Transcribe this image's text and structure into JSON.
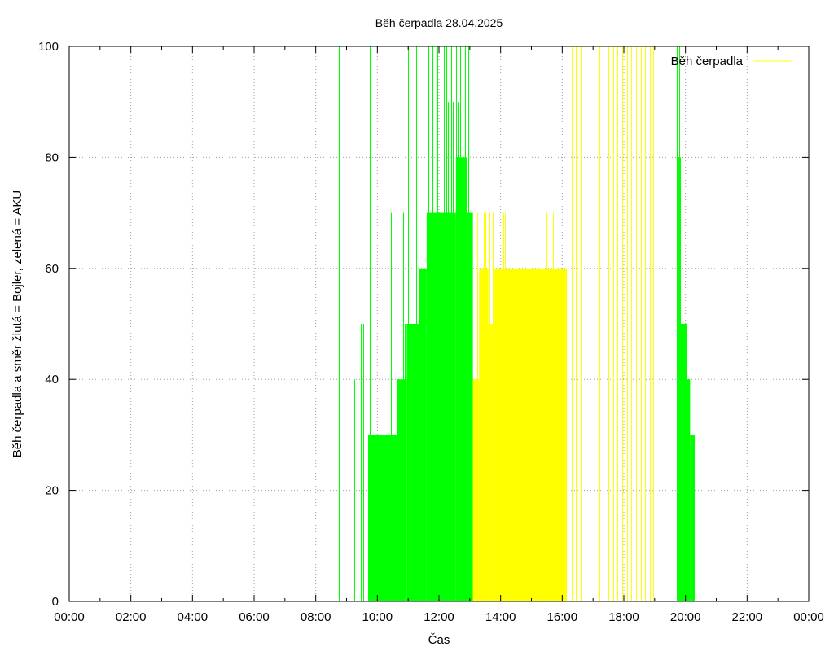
{
  "chart_data": {
    "type": "impulse",
    "title": "Běh čerpadla 28.04.2025",
    "xlabel": "Čas",
    "ylabel": "Běh čerpadla a směr žlutá = Bojler, zelená = AKU",
    "xlim": [
      0,
      24
    ],
    "ylim": [
      0,
      100
    ],
    "xticks": [
      "00:00",
      "02:00",
      "04:00",
      "06:00",
      "08:00",
      "10:00",
      "12:00",
      "14:00",
      "16:00",
      "18:00",
      "20:00",
      "22:00",
      "00:00"
    ],
    "yticks": [
      "0",
      "20",
      "40",
      "60",
      "80",
      "100"
    ],
    "grid": true,
    "legend": {
      "position": "top-right",
      "entries": [
        {
          "name": "Běh čerpadla",
          "color": "#ffff00"
        }
      ]
    },
    "colors": {
      "aku": "#00ff00",
      "bojler": "#ffff00",
      "grid": "#a0a0a0"
    },
    "series": [
      {
        "color_role": "aku",
        "ranges": [
          {
            "x0": 9.7,
            "x1": 10.65,
            "y": 30
          },
          {
            "x0": 10.65,
            "x1": 10.95,
            "y": 40
          },
          {
            "x0": 10.95,
            "x1": 11.35,
            "y": 50
          },
          {
            "x0": 11.35,
            "x1": 11.6,
            "y": 60
          },
          {
            "x0": 11.6,
            "x1": 12.55,
            "y": 70
          },
          {
            "x0": 12.55,
            "x1": 12.9,
            "y": 80
          },
          {
            "x0": 12.9,
            "x1": 13.1,
            "y": 70
          },
          {
            "x0": 19.75,
            "x1": 19.85,
            "y": 80
          },
          {
            "x0": 19.85,
            "x1": 20.05,
            "y": 50
          },
          {
            "x0": 20.05,
            "x1": 20.15,
            "y": 40
          },
          {
            "x0": 20.15,
            "x1": 20.3,
            "y": 30
          }
        ],
        "points": [
          [
            8.75,
            100
          ],
          [
            9.25,
            40
          ],
          [
            9.45,
            50
          ],
          [
            9.55,
            50
          ],
          [
            9.75,
            100
          ],
          [
            10.45,
            70
          ],
          [
            10.75,
            40
          ],
          [
            10.85,
            70
          ],
          [
            10.9,
            50
          ],
          [
            11.0,
            100
          ],
          [
            11.25,
            100
          ],
          [
            11.35,
            100
          ],
          [
            11.65,
            100
          ],
          [
            11.8,
            100
          ],
          [
            11.95,
            100
          ],
          [
            12.05,
            100
          ],
          [
            12.15,
            100
          ],
          [
            12.25,
            100
          ],
          [
            12.4,
            100
          ],
          [
            12.55,
            100
          ],
          [
            12.7,
            100
          ],
          [
            12.85,
            100
          ],
          [
            12.95,
            100
          ],
          [
            11.5,
            70
          ],
          [
            11.7,
            70
          ],
          [
            12.3,
            90
          ],
          [
            12.45,
            90
          ],
          [
            12.6,
            90
          ],
          [
            12.75,
            80
          ],
          [
            19.72,
            100
          ],
          [
            19.8,
            100
          ],
          [
            20.45,
            40
          ]
        ]
      },
      {
        "color_role": "bojler",
        "ranges": [
          {
            "x0": 13.1,
            "x1": 13.3,
            "y": 40
          },
          {
            "x0": 13.3,
            "x1": 13.6,
            "y": 60
          },
          {
            "x0": 13.6,
            "x1": 13.8,
            "y": 50
          },
          {
            "x0": 13.8,
            "x1": 16.15,
            "y": 60
          }
        ],
        "points": [
          [
            13.2,
            60
          ],
          [
            13.25,
            70
          ],
          [
            13.45,
            70
          ],
          [
            13.5,
            70
          ],
          [
            13.65,
            70
          ],
          [
            13.75,
            70
          ],
          [
            14.1,
            70
          ],
          [
            14.15,
            70
          ],
          [
            14.2,
            70
          ],
          [
            15.5,
            70
          ],
          [
            15.7,
            70
          ],
          [
            15.85,
            50
          ],
          [
            15.95,
            60
          ],
          [
            16.05,
            60
          ],
          [
            16.3,
            100
          ],
          [
            16.45,
            100
          ],
          [
            16.6,
            100
          ],
          [
            16.75,
            100
          ],
          [
            16.9,
            100
          ],
          [
            17.05,
            100
          ],
          [
            17.2,
            100
          ],
          [
            17.35,
            100
          ],
          [
            17.5,
            100
          ],
          [
            17.65,
            100
          ],
          [
            17.8,
            100
          ],
          [
            17.95,
            100
          ],
          [
            18.1,
            100
          ],
          [
            18.25,
            100
          ],
          [
            18.4,
            100
          ],
          [
            18.55,
            100
          ],
          [
            18.7,
            100
          ],
          [
            18.85,
            100
          ],
          [
            18.95,
            100
          ]
        ]
      }
    ]
  }
}
